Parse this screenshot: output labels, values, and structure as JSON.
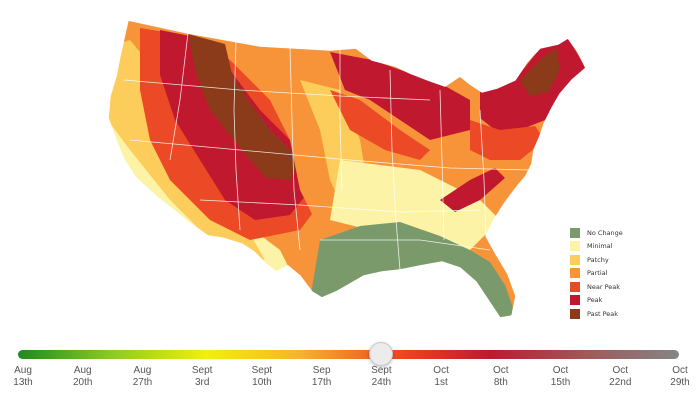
{
  "map": {
    "colors": {
      "no_change": "#7a9a6b",
      "minimal": "#fdf3a6",
      "patchy": "#fdcd5b",
      "partial": "#f7943a",
      "near_peak": "#ec4a26",
      "peak": "#c0182f",
      "past_peak": "#8b3a1a"
    }
  },
  "legend": {
    "items": [
      {
        "label": "No Change",
        "color": "#7a9a6b"
      },
      {
        "label": "Minimal",
        "color": "#fdf3a6"
      },
      {
        "label": "Patchy",
        "color": "#fdcd5b"
      },
      {
        "label": "Partial",
        "color": "#f7943a"
      },
      {
        "label": "Near Peak",
        "color": "#ec4a26"
      },
      {
        "label": "Peak",
        "color": "#c0182f"
      },
      {
        "label": "Past Peak",
        "color": "#8b3a1a"
      }
    ]
  },
  "timeline": {
    "gradient_colors": [
      "#1e8a1e",
      "#8ccc1e",
      "#f2ee12",
      "#f8b22a",
      "#f04a1c",
      "#c0182f",
      "#a05858",
      "#858585"
    ],
    "selected_index": 6,
    "ticks": [
      {
        "month": "Aug",
        "day": "13th"
      },
      {
        "month": "Aug",
        "day": "20th"
      },
      {
        "month": "Aug",
        "day": "27th"
      },
      {
        "month": "Sept",
        "day": "3rd"
      },
      {
        "month": "Sept",
        "day": "10th"
      },
      {
        "month": "Sep",
        "day": "17th"
      },
      {
        "month": "Sept",
        "day": "24th"
      },
      {
        "month": "Oct",
        "day": "1st"
      },
      {
        "month": "Oct",
        "day": "8th"
      },
      {
        "month": "Oct",
        "day": "15th"
      },
      {
        "month": "Oct",
        "day": "22nd"
      },
      {
        "month": "Oct",
        "day": "29th"
      }
    ]
  }
}
